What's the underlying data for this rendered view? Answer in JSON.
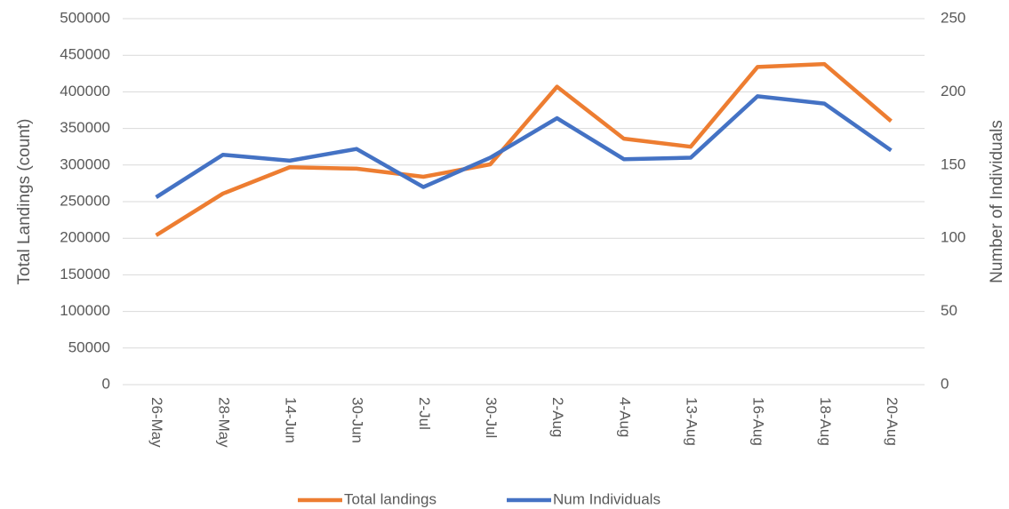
{
  "chart_data": {
    "type": "line",
    "categories": [
      "26-May",
      "28-May",
      "14-Jun",
      "30-Jun",
      "2-Jul",
      "30-Jul",
      "2-Aug",
      "4-Aug",
      "13-Aug",
      "16-Aug",
      "18-Aug",
      "20-Aug"
    ],
    "ylabel": "Total Landings (count)",
    "y2label": "Number of Individuals",
    "series": [
      {
        "name": "Total landings",
        "color": "#ed7d31",
        "values": [
          204000,
          261000,
          297000,
          295000,
          284000,
          301000,
          407000,
          336000,
          325000,
          434000,
          438000,
          360000
        ]
      },
      {
        "name": "Num Individuals",
        "color": "#4472c4",
        "axis": "y2",
        "values": [
          128,
          157,
          153,
          161,
          135,
          155,
          182,
          154,
          155,
          197,
          192,
          160
        ]
      }
    ],
    "ylim": [
      0,
      500000
    ],
    "yticks": [
      0,
      50000,
      100000,
      150000,
      200000,
      250000,
      300000,
      350000,
      400000,
      450000,
      500000
    ],
    "y2lim": [
      0,
      250
    ],
    "y2ticks": [
      0,
      50,
      100,
      150,
      200,
      250
    ],
    "grid": true,
    "legend": "bottom"
  }
}
